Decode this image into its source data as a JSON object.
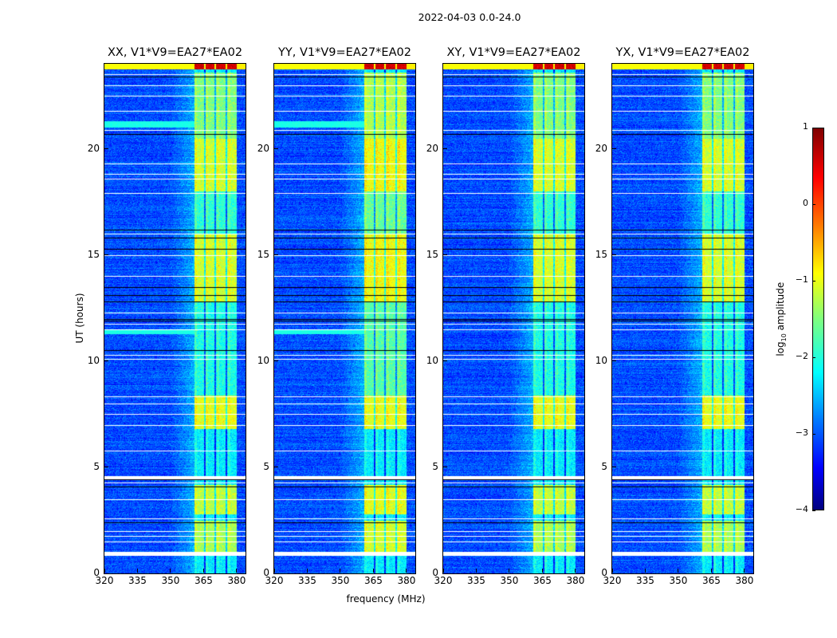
{
  "chart_data": {
    "type": "heatmap",
    "title": "2022-04-03 0.0-24.0",
    "xlabel": "frequency (MHz)",
    "ylabel": "UT (hours)",
    "xlim": [
      320,
      384
    ],
    "ylim": [
      0,
      24
    ],
    "xticks": [
      320,
      335,
      350,
      365,
      380
    ],
    "yticks": [
      0,
      5,
      10,
      15,
      20
    ],
    "panels": [
      {
        "title": "XX, V1*V9=EA27*EA02",
        "band_boost": 1.0
      },
      {
        "title": "YY, V1*V9=EA27*EA02",
        "band_boost": 1.2
      },
      {
        "title": "XY, V1*V9=EA27*EA02",
        "band_boost": 1.0
      },
      {
        "title": "YX, V1*V9=EA27*EA02",
        "band_boost": 1.05
      }
    ],
    "background_log_amplitude": -3.0,
    "rfi_band_mhz": [
      360.5,
      380
    ],
    "rfi_subband_gaps_mhz": [
      365.5,
      370.2,
      375.2
    ],
    "bright_time_segments": [
      {
        "ut": [
          1.0,
          2.5
        ],
        "level": -1.3
      },
      {
        "ut": [
          2.8,
          4.2
        ],
        "level": -1.2
      },
      {
        "ut": [
          6.8,
          8.4
        ],
        "level": -1.0
      },
      {
        "ut": [
          8.4,
          12.8
        ],
        "level": -2.0
      },
      {
        "ut": [
          12.8,
          16.0
        ],
        "level": -1.1
      },
      {
        "ut": [
          16.0,
          18.0
        ],
        "level": -1.9
      },
      {
        "ut": [
          18.0,
          20.5
        ],
        "level": -1.1
      },
      {
        "ut": [
          20.5,
          23.6
        ],
        "level": -1.5
      }
    ],
    "top_strip_ut": [
      23.75,
      24
    ],
    "top_strip_level": -0.9,
    "top_strip_band_level": 0.6,
    "flagged_rows_ut": [
      0.95,
      1.0,
      1.5,
      1.75,
      2.0,
      2.6,
      3.5,
      4.3,
      4.55,
      4.6,
      5.8,
      7.0,
      7.5,
      8.0,
      8.35,
      10.1,
      10.3,
      11.5,
      11.75,
      12.3,
      14.0,
      15.0,
      16.0,
      17.9,
      18.6,
      18.8,
      19.3,
      20.9,
      21.8,
      22.5,
      23.0,
      23.5
    ],
    "dark_rows_ut": [
      2.4,
      4.1,
      4.45,
      10.5,
      11.9,
      12.0,
      12.8,
      13.1,
      13.5,
      15.3,
      15.8,
      16.2,
      20.7,
      23.4
    ],
    "colorbar": {
      "label_prefix": "log",
      "label_sub": "10",
      "label_suffix": " amplitude",
      "range": [
        -4,
        1
      ],
      "ticks": [
        "1",
        "0",
        "−1",
        "−2",
        "−3",
        "−4"
      ],
      "colormap": "jet"
    }
  }
}
